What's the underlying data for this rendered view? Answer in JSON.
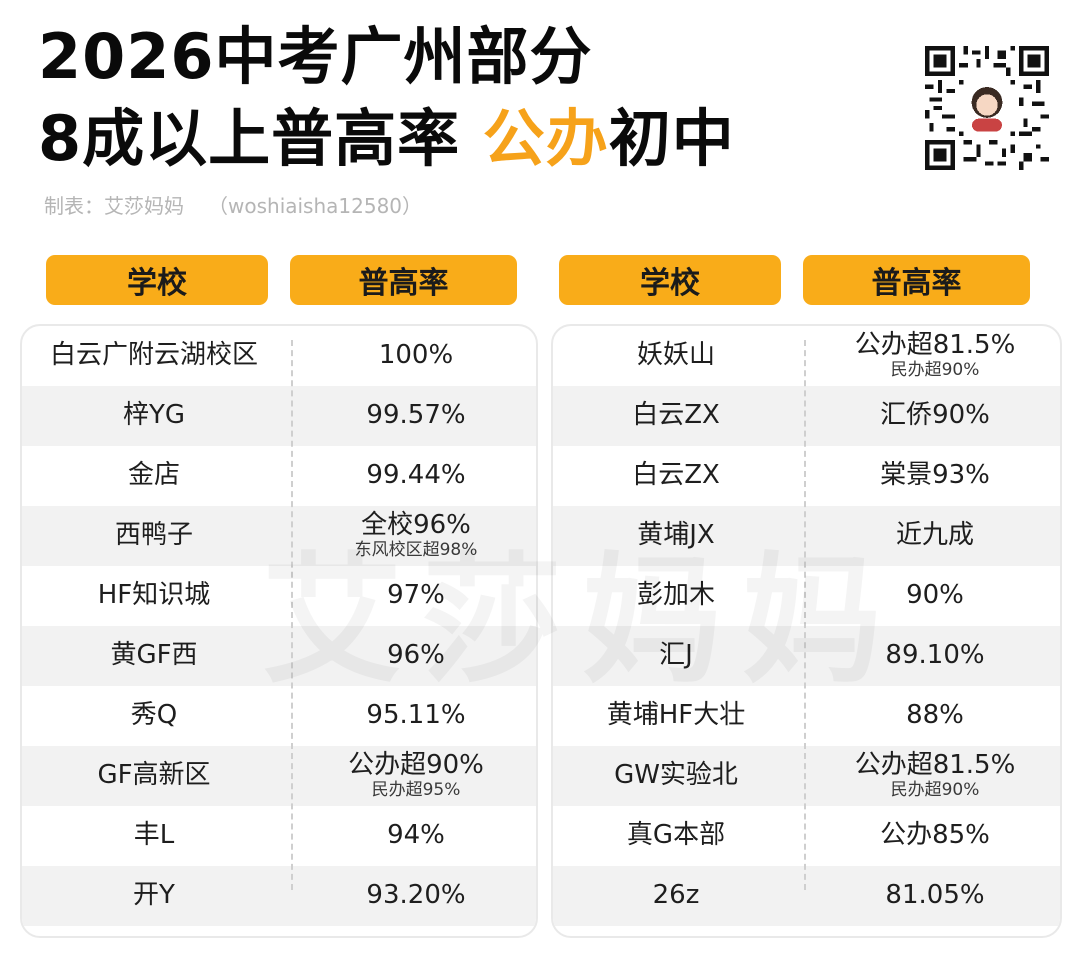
{
  "header": {
    "title_line1": "2026中考广州部分",
    "title_line2_prefix": "8成以上普高率 ",
    "title_line2_highlight": "公办",
    "title_line2_suffix": "初中",
    "credit_author": "制表：艾莎妈妈",
    "credit_handle": "（woshiaisha12580）",
    "highlight_color": "#f6a21a"
  },
  "columns": {
    "school": "学校",
    "rate": "普高率",
    "header_color": "#f9ac19"
  },
  "watermark": "艾莎妈妈",
  "left_rows": [
    {
      "school": "白云广附云湖校区",
      "rate": "100%",
      "sub": ""
    },
    {
      "school": "梓YG",
      "rate": "99.57%",
      "sub": ""
    },
    {
      "school": "金店",
      "rate": "99.44%",
      "sub": ""
    },
    {
      "school": "西鸭子",
      "rate": "全校96%",
      "sub": "东风校区超98%"
    },
    {
      "school": "HF知识城",
      "rate": "97%",
      "sub": ""
    },
    {
      "school": "黄GF西",
      "rate": "96%",
      "sub": ""
    },
    {
      "school": "秀Q",
      "rate": "95.11%",
      "sub": ""
    },
    {
      "school": "GF高新区",
      "rate": "公办超90%",
      "sub": "民办超95%"
    },
    {
      "school": "丰L",
      "rate": "94%",
      "sub": ""
    },
    {
      "school": "开Y",
      "rate": "93.20%",
      "sub": ""
    }
  ],
  "right_rows": [
    {
      "school": "妖妖山",
      "rate": "公办超81.5%",
      "sub": "民办超90%"
    },
    {
      "school": "白云ZX",
      "rate": "汇侨90%",
      "sub": ""
    },
    {
      "school": "白云ZX",
      "rate": "棠景93%",
      "sub": ""
    },
    {
      "school": "黄埔JX",
      "rate": "近九成",
      "sub": ""
    },
    {
      "school": "彭加木",
      "rate": "90%",
      "sub": ""
    },
    {
      "school": "汇J",
      "rate": "89.10%",
      "sub": ""
    },
    {
      "school": "黄埔HF大壮",
      "rate": "88%",
      "sub": ""
    },
    {
      "school": "GW实验北",
      "rate": "公办超81.5%",
      "sub": "民办超90%"
    },
    {
      "school": "真G本部",
      "rate": "公办85%",
      "sub": ""
    },
    {
      "school": "26z",
      "rate": "81.05%",
      "sub": ""
    }
  ]
}
